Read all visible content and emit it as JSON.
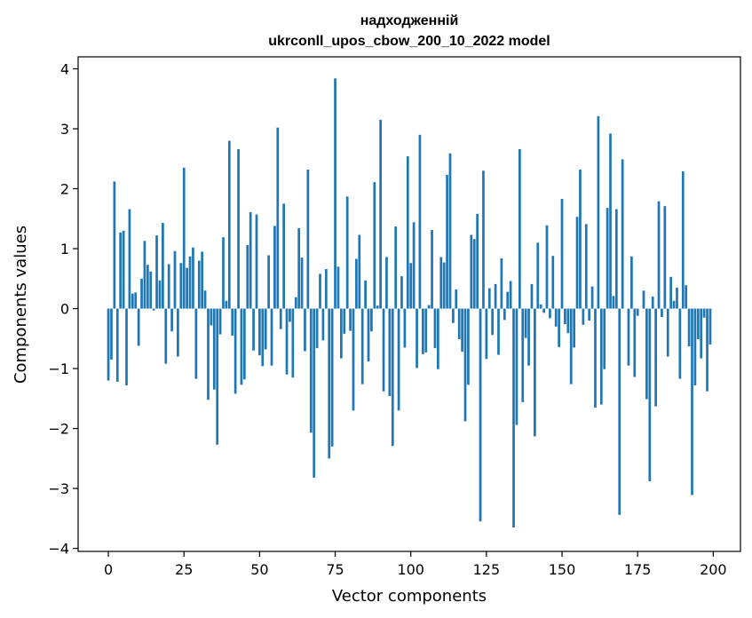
{
  "chart_data": {
    "type": "bar",
    "title_line1": "надходженній",
    "title_line2": "ukrconll_upos_cbow_200_10_2022 model",
    "xlabel": "Vector components",
    "ylabel": "Components values",
    "xlim": [
      -10,
      209
    ],
    "ylim": [
      -4.05,
      4.2
    ],
    "x_ticks": [
      0,
      25,
      50,
      75,
      100,
      125,
      150,
      175,
      200
    ],
    "y_ticks": [
      -4,
      -3,
      -2,
      -1,
      0,
      1,
      2,
      3,
      4
    ],
    "y_tick_labels": [
      "−4",
      "−3",
      "−2",
      "−1",
      "0",
      "1",
      "2",
      "3",
      "4"
    ],
    "bar_color": "#1f77b4",
    "values": [
      -1.2,
      -0.85,
      2.12,
      -1.22,
      1.27,
      1.3,
      -1.28,
      1.66,
      0.25,
      0.27,
      -0.62,
      0.5,
      1.13,
      0.73,
      0.62,
      -0.03,
      1.22,
      0.47,
      1.43,
      -0.92,
      0.74,
      -0.38,
      0.96,
      -0.8,
      0.76,
      2.35,
      0.68,
      0.87,
      1.02,
      -1.17,
      0.8,
      0.95,
      0.3,
      -1.52,
      -0.28,
      -1.35,
      -2.27,
      -0.43,
      1.19,
      0.13,
      2.8,
      -0.45,
      -1.42,
      2.66,
      -1.27,
      -1.18,
      1.06,
      1.61,
      -0.7,
      1.57,
      -0.78,
      -0.96,
      -0.68,
      0.89,
      -0.95,
      1.38,
      3.02,
      -0.34,
      1.75,
      -1.1,
      -0.22,
      -1.15,
      0.19,
      1.34,
      0.85,
      -0.71,
      2.32,
      -2.07,
      -2.82,
      -0.66,
      0.58,
      -0.53,
      0.66,
      -2.5,
      -2.3,
      3.84,
      0.7,
      -0.83,
      -0.42,
      1.87,
      -0.37,
      -1.7,
      0.83,
      1.23,
      -1.26,
      0.47,
      -0.88,
      -0.38,
      2.11,
      0.05,
      3.15,
      -1.38,
      0.86,
      -1.46,
      -2.29,
      1.37,
      -1.7,
      0.54,
      -0.65,
      2.54,
      0.76,
      1.44,
      -0.99,
      2.9,
      -0.76,
      -0.73,
      0.06,
      1.31,
      -0.66,
      -1.01,
      0.86,
      0.77,
      2.23,
      2.59,
      -0.24,
      0.32,
      -0.51,
      -0.72,
      -1.88,
      -1.27,
      1.23,
      1.16,
      1.58,
      -3.55,
      2.3,
      -0.84,
      0.34,
      -0.44,
      0.41,
      -0.77,
      0.84,
      -0.19,
      0.28,
      0.46,
      -3.65,
      -1.94,
      2.66,
      -1.56,
      -0.49,
      -0.95,
      0.41,
      -2.13,
      1.1,
      0.07,
      -0.07,
      1.39,
      -0.16,
      0.88,
      -0.3,
      -0.64,
      1.83,
      -0.26,
      -0.41,
      -1.26,
      -0.65,
      1.53,
      2.32,
      -0.27,
      1.41,
      -0.2,
      0.37,
      -1.65,
      3.21,
      -1.6,
      -1.01,
      1.68,
      2.92,
      0.21,
      1.66,
      -3.44,
      2.49,
      0.0,
      -0.95,
      0.87,
      -1.14,
      -0.12,
      0.0,
      0.3,
      -1.51,
      -2.88,
      0.2,
      -1.63,
      1.79,
      -0.14,
      1.71,
      -0.8,
      0.53,
      0.13,
      0.35,
      -1.17,
      2.29,
      0.39,
      -0.63,
      -3.11,
      -1.28,
      -0.51,
      -0.83,
      -0.15,
      -1.38,
      -0.6
    ]
  }
}
